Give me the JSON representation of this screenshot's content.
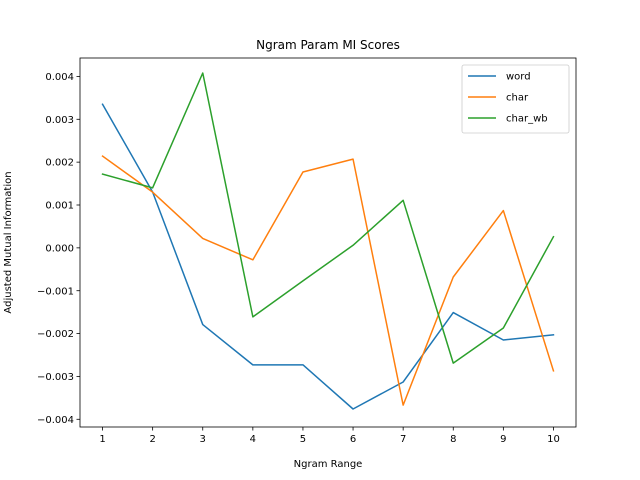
{
  "chart_data": {
    "type": "line",
    "title": "Ngram Param MI Scores",
    "xlabel": "Ngram Range",
    "ylabel": "Adjusted Mutual Information",
    "x": [
      1,
      2,
      3,
      4,
      5,
      6,
      7,
      8,
      9,
      10
    ],
    "x_ticks": [
      "1",
      "2",
      "3",
      "4",
      "5",
      "6",
      "7",
      "8",
      "9",
      "10"
    ],
    "xlim": [
      0.55,
      10.45
    ],
    "ylim": [
      -0.00418,
      0.00443
    ],
    "y_ticks": [
      -0.004,
      -0.003,
      -0.002,
      -0.001,
      0.0,
      0.001,
      0.002,
      0.003,
      0.004
    ],
    "y_tick_labels": [
      "−0.004",
      "−0.003",
      "−0.002",
      "−0.001",
      "0.000",
      "0.001",
      "0.002",
      "0.003",
      "0.004"
    ],
    "grid": false,
    "legend_position": "top-right",
    "series": [
      {
        "name": "word",
        "color": "#1f77b4",
        "values": [
          0.00335,
          0.0013,
          -0.00179,
          -0.00273,
          -0.00273,
          -0.00376,
          -0.00313,
          -0.00151,
          -0.00215,
          -0.00203
        ]
      },
      {
        "name": "char",
        "color": "#ff7f0e",
        "values": [
          0.00214,
          0.0013,
          0.00022,
          -0.00028,
          0.00177,
          0.00207,
          -0.00367,
          -0.00068,
          0.00087,
          -0.00287
        ]
      },
      {
        "name": "char_wb",
        "color": "#2ca02c",
        "values": [
          0.00172,
          0.0014,
          0.00408,
          -0.00161,
          -0.00077,
          6e-05,
          0.00111,
          -0.00269,
          -0.00187,
          0.00026
        ]
      }
    ]
  }
}
